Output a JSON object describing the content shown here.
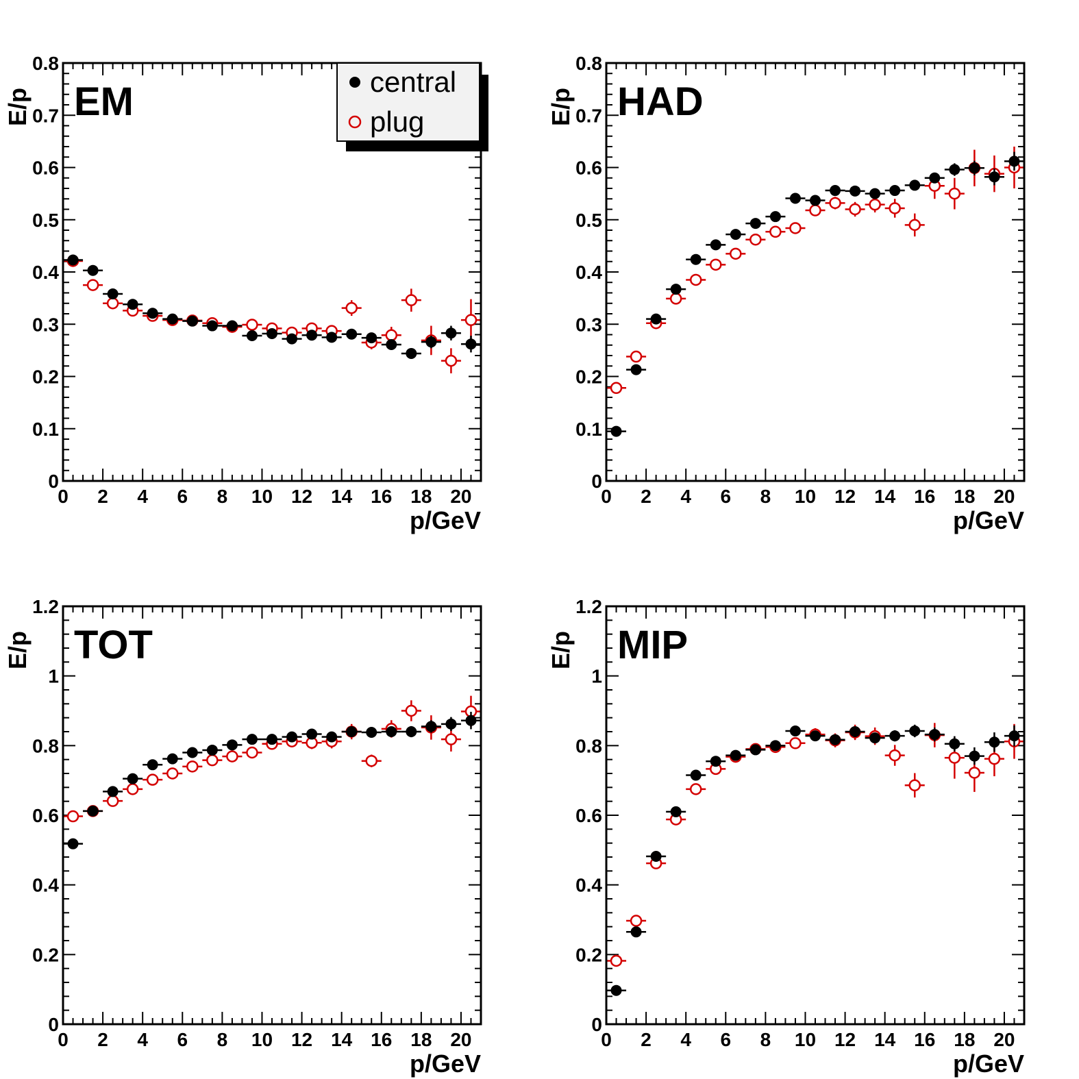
{
  "colors": {
    "central": "#000000",
    "plug": "#d40000",
    "frame": "#000000",
    "legend_bg": "#f2f2f2"
  },
  "legend": {
    "entries": [
      {
        "name": "central",
        "marker": "filled-circle"
      },
      {
        "name": "plug",
        "marker": "open-circle"
      }
    ]
  },
  "chart_data": [
    {
      "type": "scatter",
      "panel_label": "EM",
      "xlabel": "p/GeV",
      "ylabel": "E/p",
      "xlim": [
        0,
        21
      ],
      "ylim": [
        0,
        0.8
      ],
      "xticks": [
        "0",
        "2",
        "4",
        "6",
        "8",
        "10",
        "12",
        "14",
        "16",
        "18",
        "20"
      ],
      "yticks": [
        "0",
        "0.1",
        "0.2",
        "0.3",
        "0.4",
        "0.5",
        "0.6",
        "0.7",
        "0.8"
      ],
      "x": [
        0.5,
        1.5,
        2.5,
        3.5,
        4.5,
        5.5,
        6.5,
        7.5,
        8.5,
        9.5,
        10.5,
        11.5,
        12.5,
        13.5,
        14.5,
        15.5,
        16.5,
        17.5,
        18.5,
        19.5,
        20.5
      ],
      "series": [
        {
          "name": "central",
          "y": [
            0.423,
            0.403,
            0.358,
            0.338,
            0.321,
            0.31,
            0.306,
            0.297,
            0.297,
            0.278,
            0.282,
            0.272,
            0.279,
            0.275,
            0.281,
            0.274,
            0.261,
            0.244,
            0.266,
            0.283,
            0.262
          ],
          "yerr": [
            0.003,
            0.003,
            0.003,
            0.003,
            0.003,
            0.003,
            0.003,
            0.004,
            0.004,
            0.004,
            0.004,
            0.004,
            0.005,
            0.005,
            0.006,
            0.007,
            0.008,
            0.01,
            0.012,
            0.014,
            0.016
          ]
        },
        {
          "name": "plug",
          "y": [
            0.421,
            0.375,
            0.34,
            0.326,
            0.316,
            0.308,
            0.307,
            0.302,
            0.295,
            0.299,
            0.292,
            0.284,
            0.292,
            0.287,
            0.331,
            0.265,
            0.279,
            0.346,
            0.269,
            0.23,
            0.308
          ],
          "yerr": [
            0.004,
            0.004,
            0.004,
            0.004,
            0.004,
            0.005,
            0.005,
            0.005,
            0.006,
            0.006,
            0.007,
            0.008,
            0.009,
            0.011,
            0.015,
            0.013,
            0.016,
            0.022,
            0.028,
            0.024,
            0.04
          ]
        }
      ]
    },
    {
      "type": "scatter",
      "panel_label": "HAD",
      "xlabel": "p/GeV",
      "ylabel": "E/p",
      "xlim": [
        0,
        21
      ],
      "ylim": [
        0,
        0.8
      ],
      "xticks": [
        "0",
        "2",
        "4",
        "6",
        "8",
        "10",
        "12",
        "14",
        "16",
        "18",
        "20"
      ],
      "yticks": [
        "0",
        "0.1",
        "0.2",
        "0.3",
        "0.4",
        "0.5",
        "0.6",
        "0.7",
        "0.8"
      ],
      "x": [
        0.5,
        1.5,
        2.5,
        3.5,
        4.5,
        5.5,
        6.5,
        7.5,
        8.5,
        9.5,
        10.5,
        11.5,
        12.5,
        13.5,
        14.5,
        15.5,
        16.5,
        17.5,
        18.5,
        19.5,
        20.5
      ],
      "series": [
        {
          "name": "central",
          "y": [
            0.095,
            0.213,
            0.31,
            0.367,
            0.424,
            0.452,
            0.472,
            0.493,
            0.506,
            0.541,
            0.537,
            0.556,
            0.555,
            0.55,
            0.556,
            0.566,
            0.58,
            0.596,
            0.599,
            0.582,
            0.612
          ],
          "yerr": [
            0.003,
            0.003,
            0.003,
            0.003,
            0.003,
            0.004,
            0.004,
            0.004,
            0.005,
            0.005,
            0.005,
            0.006,
            0.006,
            0.007,
            0.008,
            0.009,
            0.01,
            0.012,
            0.014,
            0.016,
            0.018
          ]
        },
        {
          "name": "plug",
          "y": [
            0.178,
            0.238,
            0.302,
            0.349,
            0.385,
            0.414,
            0.435,
            0.462,
            0.477,
            0.484,
            0.518,
            0.532,
            0.52,
            0.529,
            0.522,
            0.49,
            0.565,
            0.55,
            0.599,
            0.588,
            0.6
          ],
          "yerr": [
            0.006,
            0.006,
            0.006,
            0.006,
            0.007,
            0.007,
            0.008,
            0.008,
            0.009,
            0.01,
            0.011,
            0.012,
            0.014,
            0.015,
            0.018,
            0.022,
            0.025,
            0.03,
            0.035,
            0.035,
            0.04
          ]
        }
      ]
    },
    {
      "type": "scatter",
      "panel_label": "TOT",
      "xlabel": "p/GeV",
      "ylabel": "E/p",
      "xlim": [
        0,
        21
      ],
      "ylim": [
        0,
        1.2
      ],
      "xticks": [
        "0",
        "2",
        "4",
        "6",
        "8",
        "10",
        "12",
        "14",
        "16",
        "18",
        "20"
      ],
      "yticks": [
        "0",
        "0.2",
        "0.4",
        "0.6",
        "0.8",
        "1",
        "1.2"
      ],
      "x": [
        0.5,
        1.5,
        2.5,
        3.5,
        4.5,
        5.5,
        6.5,
        7.5,
        8.5,
        9.5,
        10.5,
        11.5,
        12.5,
        13.5,
        14.5,
        15.5,
        16.5,
        17.5,
        18.5,
        19.5,
        20.5
      ],
      "series": [
        {
          "name": "central",
          "y": [
            0.518,
            0.612,
            0.668,
            0.705,
            0.745,
            0.762,
            0.78,
            0.787,
            0.802,
            0.818,
            0.818,
            0.825,
            0.833,
            0.825,
            0.84,
            0.838,
            0.84,
            0.84,
            0.855,
            0.862,
            0.872
          ],
          "yerr": [
            0.004,
            0.004,
            0.004,
            0.004,
            0.005,
            0.005,
            0.005,
            0.005,
            0.006,
            0.006,
            0.007,
            0.007,
            0.008,
            0.009,
            0.01,
            0.012,
            0.014,
            0.016,
            0.018,
            0.02,
            0.025
          ]
        },
        {
          "name": "plug",
          "y": [
            0.597,
            0.612,
            0.641,
            0.675,
            0.702,
            0.72,
            0.74,
            0.758,
            0.769,
            0.78,
            0.805,
            0.812,
            0.808,
            0.812,
            0.84,
            0.756,
            0.848,
            0.9,
            0.852,
            0.818,
            0.898
          ],
          "yerr": [
            0.008,
            0.008,
            0.008,
            0.008,
            0.009,
            0.01,
            0.01,
            0.011,
            0.012,
            0.013,
            0.014,
            0.016,
            0.018,
            0.02,
            0.022,
            0.018,
            0.025,
            0.03,
            0.035,
            0.035,
            0.045
          ]
        }
      ]
    },
    {
      "type": "scatter",
      "panel_label": "MIP",
      "xlabel": "p/GeV",
      "ylabel": "E/p",
      "xlim": [
        0,
        21
      ],
      "ylim": [
        0,
        1.2
      ],
      "xticks": [
        "0",
        "2",
        "4",
        "6",
        "8",
        "10",
        "12",
        "14",
        "16",
        "18",
        "20"
      ],
      "yticks": [
        "0",
        "0.2",
        "0.4",
        "0.6",
        "0.8",
        "1",
        "1.2"
      ],
      "x": [
        0.5,
        1.5,
        2.5,
        3.5,
        4.5,
        5.5,
        6.5,
        7.5,
        8.5,
        9.5,
        10.5,
        11.5,
        12.5,
        13.5,
        14.5,
        15.5,
        16.5,
        17.5,
        18.5,
        19.5,
        20.5
      ],
      "series": [
        {
          "name": "central",
          "y": [
            0.097,
            0.265,
            0.482,
            0.61,
            0.715,
            0.755,
            0.772,
            0.788,
            0.8,
            0.842,
            0.828,
            0.817,
            0.84,
            0.822,
            0.828,
            0.842,
            0.832,
            0.805,
            0.77,
            0.81,
            0.828
          ],
          "yerr": [
            0.004,
            0.004,
            0.005,
            0.005,
            0.006,
            0.006,
            0.007,
            0.007,
            0.008,
            0.009,
            0.01,
            0.011,
            0.012,
            0.014,
            0.016,
            0.018,
            0.02,
            0.022,
            0.025,
            0.028,
            0.03
          ]
        },
        {
          "name": "plug",
          "y": [
            0.182,
            0.297,
            0.462,
            0.588,
            0.675,
            0.733,
            0.768,
            0.79,
            0.796,
            0.807,
            0.832,
            0.815,
            0.838,
            0.827,
            0.772,
            0.686,
            0.83,
            0.765,
            0.722,
            0.762,
            0.812
          ],
          "yerr": [
            0.01,
            0.01,
            0.01,
            0.011,
            0.012,
            0.012,
            0.013,
            0.014,
            0.015,
            0.016,
            0.018,
            0.02,
            0.022,
            0.025,
            0.03,
            0.035,
            0.035,
            0.06,
            0.055,
            0.05,
            0.05
          ]
        }
      ]
    }
  ]
}
